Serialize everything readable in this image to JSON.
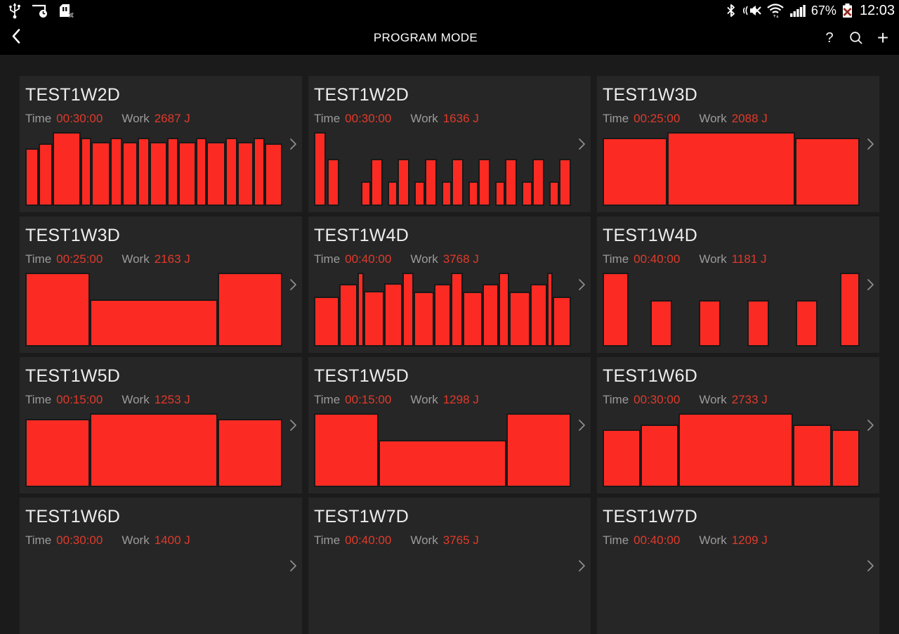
{
  "status_bar": {
    "time": "12:03",
    "battery_percent": "67%",
    "left_icons": [
      "usb-icon",
      "screen-timeout-icon",
      "no-sim-icon"
    ],
    "right_icons": [
      "bluetooth-icon",
      "mute-vibrate-icon",
      "wifi-icon",
      "signal-icon",
      "battery-alert-icon"
    ]
  },
  "header": {
    "title": "PROGRAM MODE",
    "help_label": "?",
    "add_label": "+"
  },
  "labels": {
    "time": "Time",
    "work": "Work"
  },
  "colors": {
    "page_bg": "#1b1b1b",
    "card_bg": "#262626",
    "bar_red": "#fb2b23",
    "value_red": "#e03a2b",
    "label_gray": "#9b9b9b",
    "title_white": "#ededed"
  },
  "programs": [
    {
      "name": "TEST1W2D",
      "time": "00:30:00",
      "work": "2687 J",
      "bars": [
        [
          14,
          0.78
        ],
        [
          16,
          0.85
        ],
        [
          34,
          1.0
        ],
        [
          11,
          0.92
        ],
        [
          22,
          0.87
        ],
        [
          12,
          0.92
        ],
        [
          18,
          0.87
        ],
        [
          12,
          0.92
        ],
        [
          20,
          0.87
        ],
        [
          12,
          0.92
        ],
        [
          20,
          0.87
        ],
        [
          11,
          0.92
        ],
        [
          22,
          0.87
        ],
        [
          12,
          0.92
        ],
        [
          18,
          0.87
        ],
        [
          12,
          0.92
        ],
        [
          20,
          0.85
        ]
      ]
    },
    {
      "name": "TEST1W2D",
      "time": "00:30:00",
      "work": "1636 J",
      "bars": [
        [
          17,
          1.0
        ],
        [
          2,
          0
        ],
        [
          17,
          0.64
        ],
        [
          40,
          0
        ],
        [
          13,
          0.33
        ],
        [
          17,
          0.64
        ],
        [
          9,
          0
        ],
        [
          13,
          0.33
        ],
        [
          17,
          0.64
        ],
        [
          9,
          0
        ],
        [
          13,
          0.33
        ],
        [
          17,
          0.64
        ],
        [
          9,
          0
        ],
        [
          13,
          0.33
        ],
        [
          17,
          0.64
        ],
        [
          9,
          0
        ],
        [
          13,
          0.33
        ],
        [
          17,
          0.64
        ],
        [
          9,
          0
        ],
        [
          13,
          0.33
        ],
        [
          17,
          0.64
        ],
        [
          9,
          0
        ],
        [
          13,
          0.33
        ],
        [
          17,
          0.64
        ],
        [
          9,
          0
        ],
        [
          13,
          0.33
        ],
        [
          17,
          0.64
        ]
      ]
    },
    {
      "name": "TEST1W3D",
      "time": "00:25:00",
      "work": "2088 J",
      "bars": [
        [
          25,
          0.92
        ],
        [
          51,
          1.0
        ],
        [
          25,
          0.92
        ]
      ]
    },
    {
      "name": "TEST1W3D",
      "time": "00:25:00",
      "work": "2163 J",
      "bars": [
        [
          25,
          1.0
        ],
        [
          51,
          0.64
        ],
        [
          25,
          1.0
        ]
      ]
    },
    {
      "name": "TEST1W4D",
      "time": "00:40:00",
      "work": "3768 J",
      "bars": [
        [
          37,
          0.68
        ],
        [
          25,
          0.85
        ],
        [
          6,
          1.0
        ],
        [
          29,
          0.75
        ],
        [
          25,
          0.86
        ],
        [
          14,
          1.0
        ],
        [
          29,
          0.74
        ],
        [
          23,
          0.85
        ],
        [
          15,
          1.0
        ],
        [
          28,
          0.74
        ],
        [
          22,
          0.85
        ],
        [
          13,
          1.0
        ],
        [
          30,
          0.74
        ],
        [
          23,
          0.85
        ],
        [
          5,
          1.0
        ],
        [
          25,
          0.68
        ]
      ]
    },
    {
      "name": "TEST1W4D",
      "time": "00:40:00",
      "work": "1181 J",
      "bars": [
        [
          35,
          1.0
        ],
        [
          33,
          0
        ],
        [
          29,
          0.63
        ],
        [
          40,
          0
        ],
        [
          29,
          0.63
        ],
        [
          40,
          0
        ],
        [
          29,
          0.63
        ],
        [
          40,
          0
        ],
        [
          29,
          0.63
        ],
        [
          33,
          0
        ],
        [
          26,
          1.0
        ]
      ]
    },
    {
      "name": "TEST1W5D",
      "time": "00:15:00",
      "work": "1253 J",
      "bars": [
        [
          25,
          0.92
        ],
        [
          51,
          1.0
        ],
        [
          25,
          0.92
        ]
      ]
    },
    {
      "name": "TEST1W5D",
      "time": "00:15:00",
      "work": "1298 J",
      "bars": [
        [
          25,
          1.0
        ],
        [
          51,
          0.64
        ],
        [
          25,
          1.0
        ]
      ]
    },
    {
      "name": "TEST1W6D",
      "time": "00:30:00",
      "work": "2733 J",
      "bars": [
        [
          52,
          0.78
        ],
        [
          53,
          0.85
        ],
        [
          167,
          1.0
        ],
        [
          53,
          0.85
        ],
        [
          38,
          0.78
        ]
      ]
    },
    {
      "name": "TEST1W6D",
      "time": "00:30:00",
      "work": "1400 J",
      "bars": []
    },
    {
      "name": "TEST1W7D",
      "time": "00:40:00",
      "work": "3765 J",
      "bars": []
    },
    {
      "name": "TEST1W7D",
      "time": "00:40:00",
      "work": "1209 J",
      "bars": []
    }
  ]
}
